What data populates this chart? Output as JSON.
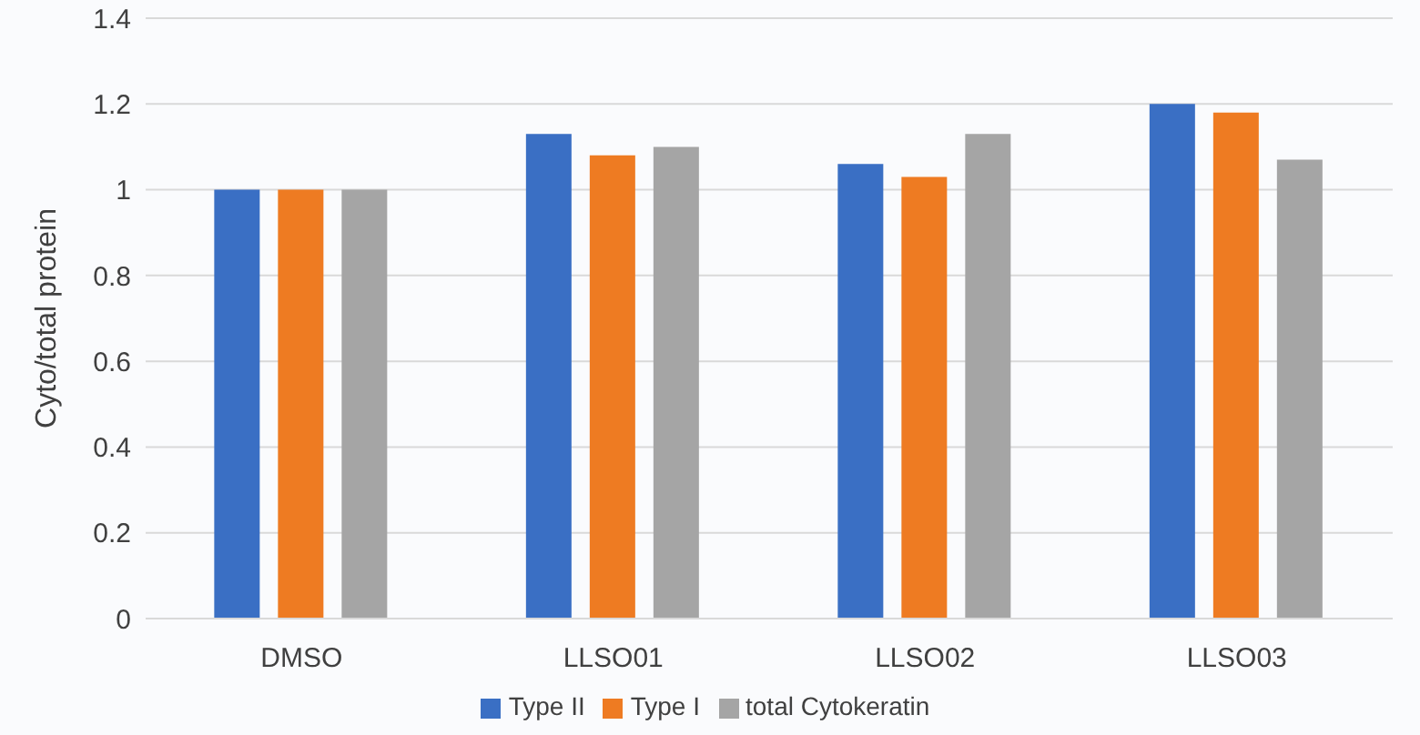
{
  "chart_data": {
    "type": "bar",
    "ylabel": "Cyto/total protein",
    "categories": [
      "DMSO",
      "LLSO01",
      "LLSO02",
      "LLSO03"
    ],
    "series": [
      {
        "name": "Type II",
        "color": "#3a6fc4",
        "values": [
          1.0,
          1.13,
          1.06,
          1.2
        ]
      },
      {
        "name": "Type I",
        "color": "#ee7b22",
        "values": [
          1.0,
          1.08,
          1.03,
          1.18
        ]
      },
      {
        "name": "total Cytokeratin",
        "color": "#a5a5a5",
        "values": [
          1.0,
          1.1,
          1.13,
          1.07
        ]
      }
    ],
    "ylim": [
      0,
      1.4
    ],
    "yticks": [
      0,
      0.2,
      0.4,
      0.6,
      0.8,
      1,
      1.2,
      1.4
    ],
    "grid": "y",
    "legend": "bottom"
  }
}
